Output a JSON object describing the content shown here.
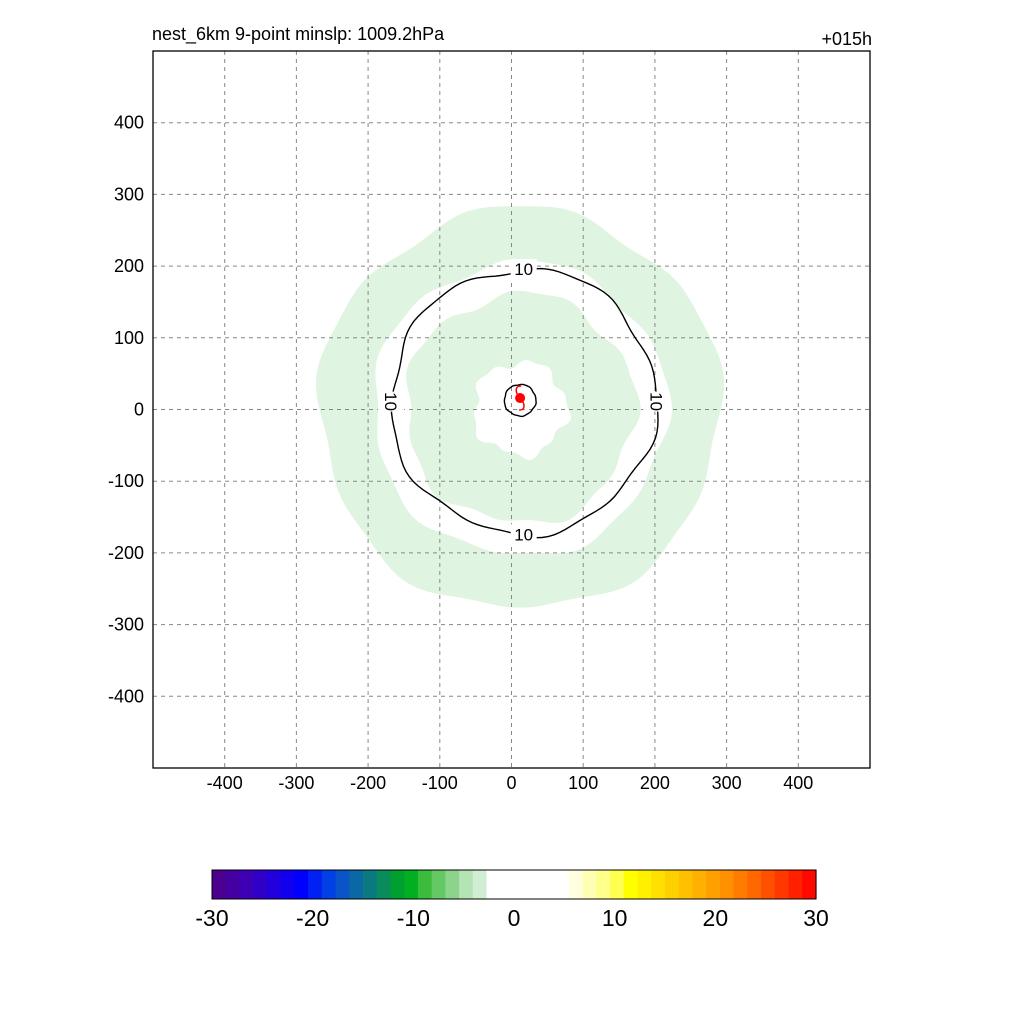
{
  "header": {
    "title": "nest_6km  9-point minslp: 1009.2hPa",
    "forecast_hour": "+015h"
  },
  "chart_data": {
    "type": "contour",
    "x_ticks": [
      "-400",
      "-300",
      "-200",
      "-100",
      "0",
      "100",
      "200",
      "300",
      "400"
    ],
    "y_ticks": [
      "400",
      "300",
      "200",
      "100",
      "0",
      "-100",
      "-200",
      "-300",
      "-400"
    ],
    "xlim": [
      -500,
      500
    ],
    "ylim": [
      -500,
      500
    ],
    "grid": true,
    "storm_center": {
      "x": 12,
      "y": 16
    },
    "filled_bands": [
      {
        "level_range": [
          -5,
          -3
        ],
        "color": "#dff4e1",
        "inner_radius": 205,
        "outer_radius": 280
      },
      {
        "level_range": [
          -5,
          -3
        ],
        "color": "#dff4e1",
        "inner_radius": 65,
        "outer_radius": 160
      }
    ],
    "contours": [
      {
        "level": 10,
        "radius": 185,
        "labels": [
          "10",
          "10",
          "10",
          "10"
        ]
      },
      {
        "level": 10,
        "radius": 22,
        "labels": []
      }
    ],
    "colorbar": {
      "tick_labels": [
        "-30",
        "-20",
        "-10",
        "0",
        "10",
        "20",
        "30"
      ],
      "range": [
        -30,
        30
      ],
      "colors": [
        "#4b0090",
        "#4400a0",
        "#3d00b4",
        "#3000c8",
        "#2000dc",
        "#1000ee",
        "#0000ff",
        "#0020f4",
        "#0040e4",
        "#0a54c8",
        "#0a68a4",
        "#0a7a80",
        "#0a8c5c",
        "#00a030",
        "#00b020",
        "#3cbc3c",
        "#64c864",
        "#8cd48c",
        "#b4e4b4",
        "#d2eed2",
        "#ffffff",
        "#ffffff",
        "#ffffff",
        "#ffffff",
        "#ffffff",
        "#ffffff",
        "#ffffe0",
        "#ffffb4",
        "#ffff8c",
        "#ffff50",
        "#ffff00",
        "#fff000",
        "#ffe000",
        "#ffd000",
        "#ffc000",
        "#ffb000",
        "#ffa000",
        "#ff9000",
        "#ff7c00",
        "#ff6800",
        "#ff5000",
        "#ff3800",
        "#ff2000",
        "#ff0800"
      ]
    }
  }
}
